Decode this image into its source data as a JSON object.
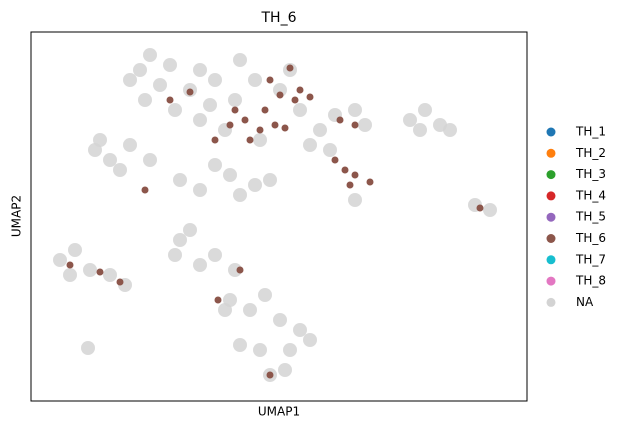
{
  "chart_data": {
    "type": "scatter",
    "title": "TH_6",
    "x_label": "UMAP1",
    "y_label": "UMAP2",
    "xlim": [
      31,
      527
    ],
    "ylim": [
      401,
      32
    ],
    "series": [
      {
        "name": "TH_1",
        "color": "#1f77b4",
        "x": [],
        "y": []
      },
      {
        "name": "TH_2",
        "color": "#ff7f0e",
        "x": [],
        "y": []
      },
      {
        "name": "TH_3",
        "color": "#2ca02c",
        "x": [],
        "y": []
      },
      {
        "name": "TH_4",
        "color": "#d62728",
        "x": [],
        "y": []
      },
      {
        "name": "TH_5",
        "color": "#9467bd",
        "x": [],
        "y": []
      },
      {
        "name": "TH_6",
        "color": "#8c564b",
        "x": [
          230,
          245,
          260,
          275,
          250,
          235,
          265,
          285,
          215,
          270,
          280,
          295,
          310,
          290,
          300,
          335,
          345,
          355,
          370,
          350,
          145,
          340,
          355,
          70,
          100,
          120,
          218,
          240,
          270,
          480,
          170,
          190
        ],
        "y": [
          125,
          120,
          130,
          125,
          140,
          110,
          110,
          128,
          140,
          80,
          95,
          100,
          97,
          68,
          90,
          160,
          170,
          175,
          182,
          185,
          190,
          120,
          125,
          265,
          272,
          282,
          300,
          270,
          375,
          208,
          100,
          92
        ]
      },
      {
        "name": "TH_7",
        "color": "#17becf",
        "x": [],
        "y": []
      },
      {
        "name": "TH_8",
        "color": "#e377c2",
        "x": [],
        "y": []
      },
      {
        "name": "NA",
        "color": "#d3d3d3",
        "x": [
          150,
          140,
          170,
          200,
          130,
          160,
          190,
          215,
          235,
          175,
          145,
          200,
          225,
          240,
          255,
          210,
          95,
          110,
          130,
          150,
          120,
          100,
          180,
          200,
          230,
          255,
          270,
          215,
          240,
          280,
          300,
          320,
          260,
          310,
          290,
          335,
          355,
          365,
          410,
          425,
          440,
          450,
          420,
          475,
          490,
          60,
          75,
          90,
          110,
          125,
          70,
          180,
          175,
          200,
          215,
          235,
          190,
          230,
          250,
          265,
          280,
          300,
          240,
          260,
          290,
          310,
          270,
          285,
          225,
          88,
          330,
          355
        ],
        "y": [
          55,
          70,
          65,
          70,
          80,
          85,
          90,
          80,
          100,
          110,
          100,
          120,
          130,
          60,
          80,
          105,
          150,
          160,
          145,
          160,
          170,
          140,
          180,
          190,
          175,
          185,
          180,
          165,
          195,
          90,
          110,
          130,
          140,
          145,
          70,
          115,
          110,
          125,
          120,
          110,
          125,
          130,
          130,
          205,
          210,
          260,
          250,
          270,
          275,
          285,
          275,
          240,
          255,
          265,
          255,
          270,
          230,
          300,
          310,
          295,
          320,
          330,
          345,
          350,
          350,
          340,
          375,
          370,
          310,
          348,
          150,
          200
        ]
      }
    ]
  }
}
